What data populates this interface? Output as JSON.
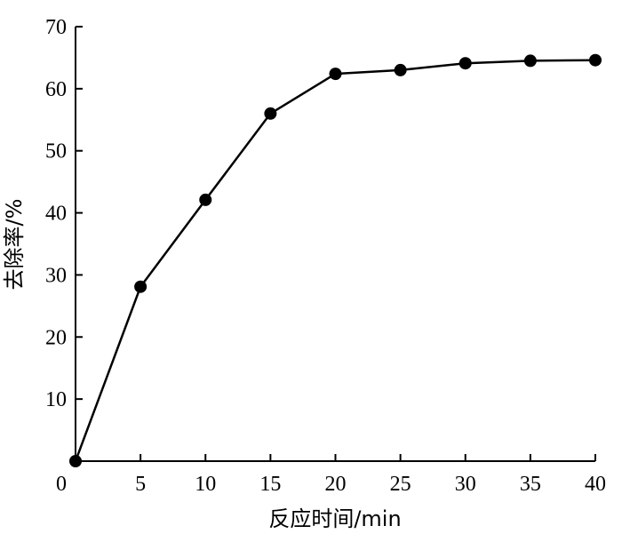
{
  "chart_data": {
    "type": "line",
    "title": "",
    "xlabel": "反应时间/min",
    "ylabel": "去除率/%",
    "xlim": [
      0,
      40
    ],
    "ylim": [
      0,
      70
    ],
    "xticks": [
      "0",
      "5",
      "10",
      "15",
      "20",
      "25",
      "30",
      "35",
      "40"
    ],
    "yticks": [
      "10",
      "20",
      "30",
      "40",
      "50",
      "60",
      "70"
    ],
    "grid": false,
    "legend": "none",
    "series": [
      {
        "x": [
          0,
          5,
          10,
          15,
          20,
          25,
          30,
          35,
          40
        ],
        "y": [
          0,
          28.1,
          42.1,
          56.0,
          62.4,
          63.0,
          64.1,
          64.5,
          64.6
        ],
        "color": "#000000",
        "marker": "filled-circle"
      }
    ]
  }
}
